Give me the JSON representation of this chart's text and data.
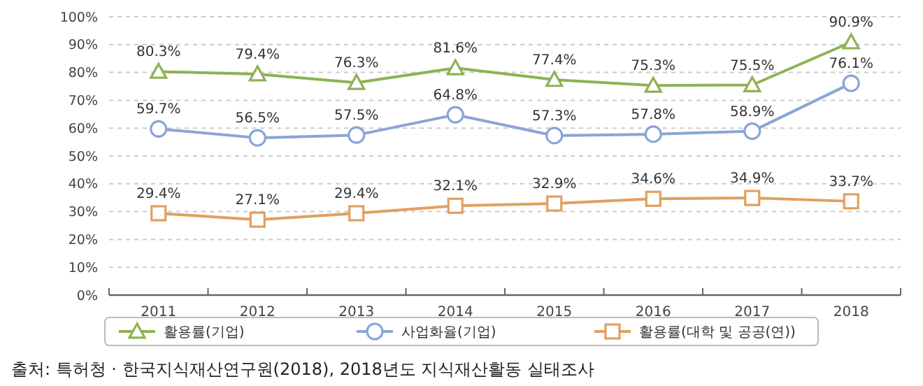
{
  "chart_data": {
    "type": "line",
    "categories": [
      "2011",
      "2012",
      "2013",
      "2014",
      "2015",
      "2016",
      "2017",
      "2018"
    ],
    "series": [
      {
        "name": "활용률(기업)",
        "color": "#8db255",
        "marker": "triangle",
        "values": [
          80.3,
          79.4,
          76.3,
          81.6,
          77.4,
          75.3,
          75.5,
          90.9
        ],
        "value_labels": [
          "80.3%",
          "79.4%",
          "76.3%",
          "81.6%",
          "77.4%",
          "75.3%",
          "75.5%",
          "90.9%"
        ]
      },
      {
        "name": "사업화율(기업)",
        "color": "#8aa5d6",
        "marker": "circle",
        "values": [
          59.7,
          56.5,
          57.5,
          64.8,
          57.3,
          57.8,
          58.9,
          76.1
        ],
        "value_labels": [
          "59.7%",
          "56.5%",
          "57.5%",
          "64.8%",
          "57.3%",
          "57.8%",
          "58.9%",
          "76.1%"
        ]
      },
      {
        "name": "활용률(대학 및 공공(연))",
        "color": "#e0a060",
        "marker": "square",
        "values": [
          29.4,
          27.1,
          29.4,
          32.1,
          32.9,
          34.6,
          34.9,
          33.7
        ],
        "value_labels": [
          "29.4%",
          "27.1%",
          "29.4%",
          "32.1%",
          "32.9%",
          "34.6%",
          "34.9%",
          "33.7%"
        ]
      }
    ],
    "ylim": [
      0,
      100
    ],
    "yticks": [
      {
        "value": 0,
        "label": "0%"
      },
      {
        "value": 10,
        "label": "10%"
      },
      {
        "value": 20,
        "label": "20%"
      },
      {
        "value": 30,
        "label": "30%"
      },
      {
        "value": 40,
        "label": "40%"
      },
      {
        "value": 50,
        "label": "50%"
      },
      {
        "value": 60,
        "label": "60%"
      },
      {
        "value": 70,
        "label": "70%"
      },
      {
        "value": 80,
        "label": "80%"
      },
      {
        "value": 90,
        "label": "90%"
      },
      {
        "value": 100,
        "label": "100%"
      }
    ],
    "grid": "y",
    "legend": "bottom",
    "line_style": "solid",
    "annotations": [
      "출처: 특허청 · 한국지식재산연구원(2018), 2018년도 지식재산활동 실태조사"
    ]
  }
}
